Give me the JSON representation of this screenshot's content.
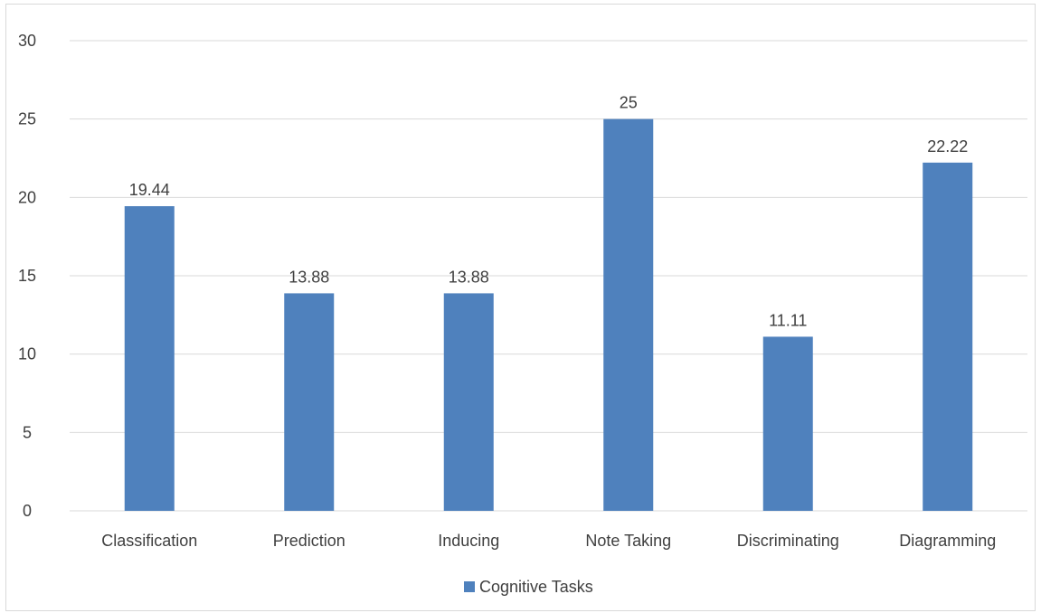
{
  "chart_data": {
    "type": "bar",
    "categories": [
      "Classification",
      "Prediction",
      "Inducing",
      "Note Taking",
      "Discriminating",
      "Diagramming"
    ],
    "series": [
      {
        "name": "Cognitive Tasks",
        "values": [
          19.44,
          13.88,
          13.88,
          25,
          11.11,
          22.22
        ],
        "data_labels": [
          "19.44",
          "13.88",
          "13.88",
          "25",
          "11.11",
          "22.22"
        ],
        "color": "#4f81bd"
      }
    ],
    "yticks": [
      "0",
      "5",
      "10",
      "15",
      "20",
      "25",
      "30"
    ],
    "ylim": [
      0,
      30
    ],
    "grid": true,
    "legend_position": "bottom",
    "gridline_color": "#d9d9d9",
    "text_color": "#404040"
  }
}
